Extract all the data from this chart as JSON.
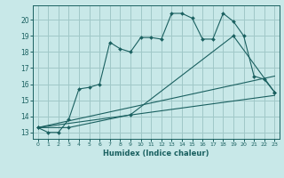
{
  "xlabel": "Humidex (Indice chaleur)",
  "bg_color": "#c8e8e8",
  "grid_color": "#a0c8c8",
  "line_color": "#1a6060",
  "xlim": [
    -0.5,
    23.5
  ],
  "ylim": [
    12.6,
    20.9
  ],
  "xticks": [
    0,
    1,
    2,
    3,
    4,
    5,
    6,
    7,
    8,
    9,
    10,
    11,
    12,
    13,
    14,
    15,
    16,
    17,
    18,
    19,
    20,
    21,
    22,
    23
  ],
  "yticks": [
    13,
    14,
    15,
    16,
    17,
    18,
    19,
    20
  ],
  "line1_x": [
    0,
    1,
    2,
    3,
    4,
    5,
    6,
    7,
    8,
    9,
    10,
    11,
    12,
    13,
    14,
    15,
    16,
    17,
    18,
    19,
    20,
    21,
    22,
    23
  ],
  "line1_y": [
    13.3,
    13.0,
    13.0,
    13.8,
    15.7,
    15.8,
    16.0,
    18.6,
    18.2,
    18.0,
    18.9,
    18.9,
    18.8,
    20.4,
    20.4,
    20.1,
    18.8,
    18.8,
    20.4,
    19.9,
    19.0,
    16.5,
    16.3,
    15.5
  ],
  "line2_x": [
    0,
    3,
    9,
    19,
    23
  ],
  "line2_y": [
    13.3,
    13.3,
    14.1,
    19.0,
    15.5
  ],
  "line3_x": [
    0,
    23
  ],
  "line3_y": [
    13.3,
    16.5
  ],
  "line4_x": [
    0,
    23
  ],
  "line4_y": [
    13.3,
    15.3
  ]
}
